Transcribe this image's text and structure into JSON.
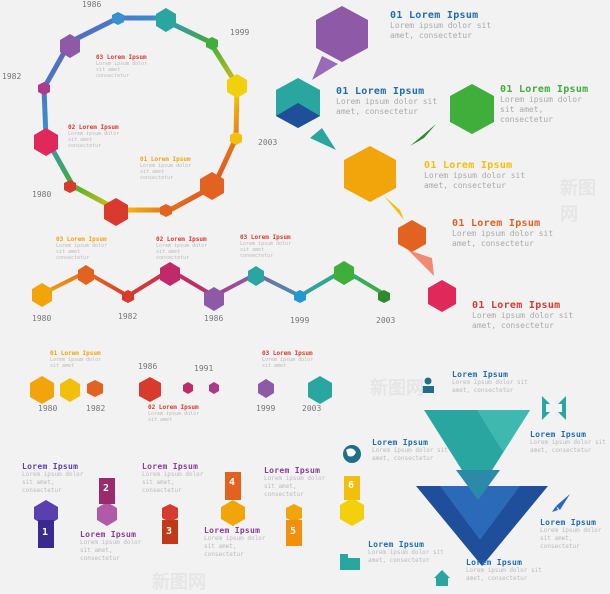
{
  "colors": {
    "purple": "#8e5aa8",
    "teal": "#2aa6a0",
    "blue": "#1f4e9a",
    "green": "#3fae3a",
    "yellow": "#f2a50b",
    "orange": "#e2621f",
    "red": "#d83a2e",
    "pink": "#e0285b"
  },
  "ring": {
    "years": [
      "1986",
      "1999",
      "2003",
      "1980",
      "1982"
    ],
    "labels": [
      {
        "title": "03 Lorem Ipsum",
        "body": "Lorem ipsum dolor sit amet consectetur"
      },
      {
        "title": "02 Lorem Ipsum",
        "body": "Lorem ipsum dolor sit amet consectetur"
      },
      {
        "title": "01 Lorem Ipsum",
        "body": "Lorem ipsum dolor sit amet consectetur"
      }
    ]
  },
  "bubbles": [
    {
      "title": "01 Lorem Ipsum",
      "body": "Lorem ipsum dolor sit amet, consectetur"
    },
    {
      "title": "01 Lorem Ipsum",
      "body": "Lorem ipsum dolor sit amet, consectetur"
    },
    {
      "title": "01 Lorem Ipsum",
      "body": "Lorem ipsum dolor sit amet, consectetur"
    },
    {
      "title": "01 Lorem Ipsum",
      "body": "Lorem ipsum dolor sit amet, consectetur"
    },
    {
      "title": "01 Lorem Ipsum",
      "body": "Lorem ipsum dolor sit amet, consectetur"
    },
    {
      "title": "01 Lorem Ipsum",
      "body": "Lorem ipsum dolor sit amet, consectetur"
    }
  ],
  "zigzag": {
    "years": [
      "1980",
      "1982",
      "1986",
      "1999",
      "2003"
    ],
    "labels": [
      {
        "title": "03 Lorem Ipsum",
        "body": "Lorem ipsum dolor sit amet consectetur"
      },
      {
        "title": "02 Lorem Ipsum",
        "body": "Lorem ipsum dolor sit amet consectetur"
      },
      {
        "title": "03 Lorem Ipsum",
        "body": "Lorem ipsum dolor sit amet consectetur"
      }
    ]
  },
  "straight": {
    "years": [
      "1986",
      "1991",
      "1980",
      "1982",
      "1999",
      "2003"
    ],
    "labels": [
      {
        "title": "01 Lorem Ipsum",
        "body": "Lorem ipsum dolor sit amet"
      },
      {
        "title": "03 Lorem Ipsum",
        "body": "Lorem ipsum dolor sit amet"
      },
      {
        "title": "02 Lorem Ipsum",
        "body": "Lorem ipsum dolor sit amet"
      }
    ]
  },
  "steps": {
    "numbers": [
      "1",
      "2",
      "3",
      "4",
      "5",
      "6"
    ],
    "labels": [
      {
        "title": "Lorem Ipsum",
        "body": "Lorem ipsum dolor sit amet, consectetur"
      },
      {
        "title": "Lorem Ipsum",
        "body": "Lorem ipsum dolor sit amet, consectetur"
      },
      {
        "title": "Lorem Ipsum",
        "body": "Lorem ipsum dolor sit amet, consectetur"
      },
      {
        "title": "Lorem Ipsum",
        "body": "Lorem ipsum dolor sit amet, consectetur"
      },
      {
        "title": "Lorem Ipsum",
        "body": "Lorem ipsum dolor sit amet, consectetur"
      }
    ]
  },
  "triangle_labels": [
    {
      "title": "Lorem Ipsum",
      "body": "Lorem ipsum dolor sit amet, consectetur"
    },
    {
      "title": "Lorem Ipsum",
      "body": "Lorem ipsum dolor sit amet, consectetur"
    },
    {
      "title": "Lorem Ipsum",
      "body": "Lorem ipsum dolor sit amet, consectetur"
    },
    {
      "title": "Lorem Ipsum",
      "body": "Lorem ipsum dolor sit amet, consectetur"
    },
    {
      "title": "Lorem Ipsum",
      "body": "Lorem ipsum dolor sit amet, consectetur"
    },
    {
      "title": "Lorem Ipsum",
      "body": "Lorem ipsum dolor sit amet, consectetur"
    }
  ],
  "icons": [
    "user-icon",
    "compress-arrows-icon",
    "globe-icon",
    "rocket-icon",
    "building-icon",
    "home-icon"
  ],
  "watermark": "新图网"
}
